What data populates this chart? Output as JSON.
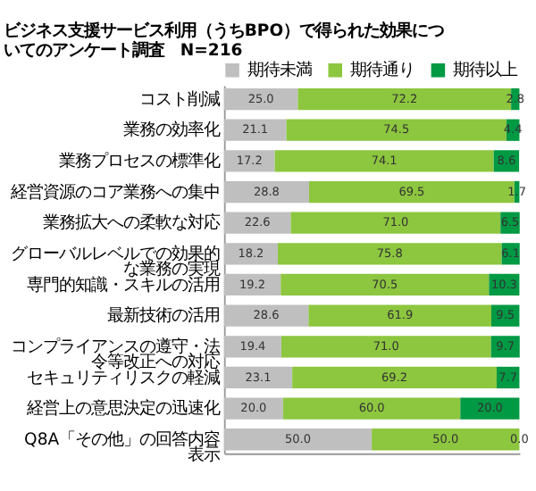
{
  "chart_data": {
    "type": "bar",
    "orientation": "horizontal",
    "stacked": true,
    "title": "ビジネス支援サービス利用（うちBPO）で得られた効果についてのアンケート調査　N=216",
    "categories": [
      "コスト削減",
      "業務の効率化",
      "業務プロセスの標準化",
      "経営資源のコア業務への集中",
      "業務拡大への柔軟な対応",
      "グローバルレベルでの効果的な業務の実現",
      "専門的知識・スキルの活用",
      "最新技術の活用",
      "コンプライアンスの遵守・法令等改正への対応",
      "セキュリティリスクの軽減",
      "経営上の意思決定の迅速化",
      "Q8A「その他」の回答内容表示"
    ],
    "series": [
      {
        "name": "期待未満",
        "color": "#bfbfbf",
        "values": [
          25.0,
          21.1,
          17.2,
          28.8,
          22.6,
          18.2,
          19.2,
          28.6,
          19.4,
          23.1,
          20.0,
          50.0
        ],
        "value_labels": [
          "25.0",
          "21.1",
          "17.2",
          "28.8",
          "22.6",
          "18.2",
          "19.2",
          "28.6",
          "19.4",
          "23.1",
          "20.0",
          "50.0"
        ]
      },
      {
        "name": "期待通り",
        "color": "#8dc63f",
        "values": [
          72.2,
          74.5,
          74.1,
          69.5,
          71.0,
          75.8,
          70.5,
          61.9,
          71.0,
          69.2,
          60.0,
          50.0
        ],
        "value_labels": [
          "72.2",
          "74.5",
          "74.1",
          "69.5",
          "71.0",
          "75.8",
          "70.5",
          "61.9",
          "71.0",
          "69.2",
          "60.0",
          "50.0"
        ]
      },
      {
        "name": "期待以上",
        "color": "#009944",
        "values": [
          2.8,
          4.4,
          8.6,
          1.7,
          6.5,
          6.1,
          10.3,
          9.5,
          9.7,
          7.7,
          20.0,
          0.0
        ],
        "value_labels": [
          "2.8",
          "4.4",
          "8.6",
          "1.7",
          "6.5",
          "6.1",
          "10.3",
          "9.5",
          "9.7",
          "7.7",
          "20.0",
          "0.0"
        ]
      }
    ],
    "xlim": [
      0,
      100
    ],
    "tick_labels": "y",
    "legend": "top right"
  }
}
